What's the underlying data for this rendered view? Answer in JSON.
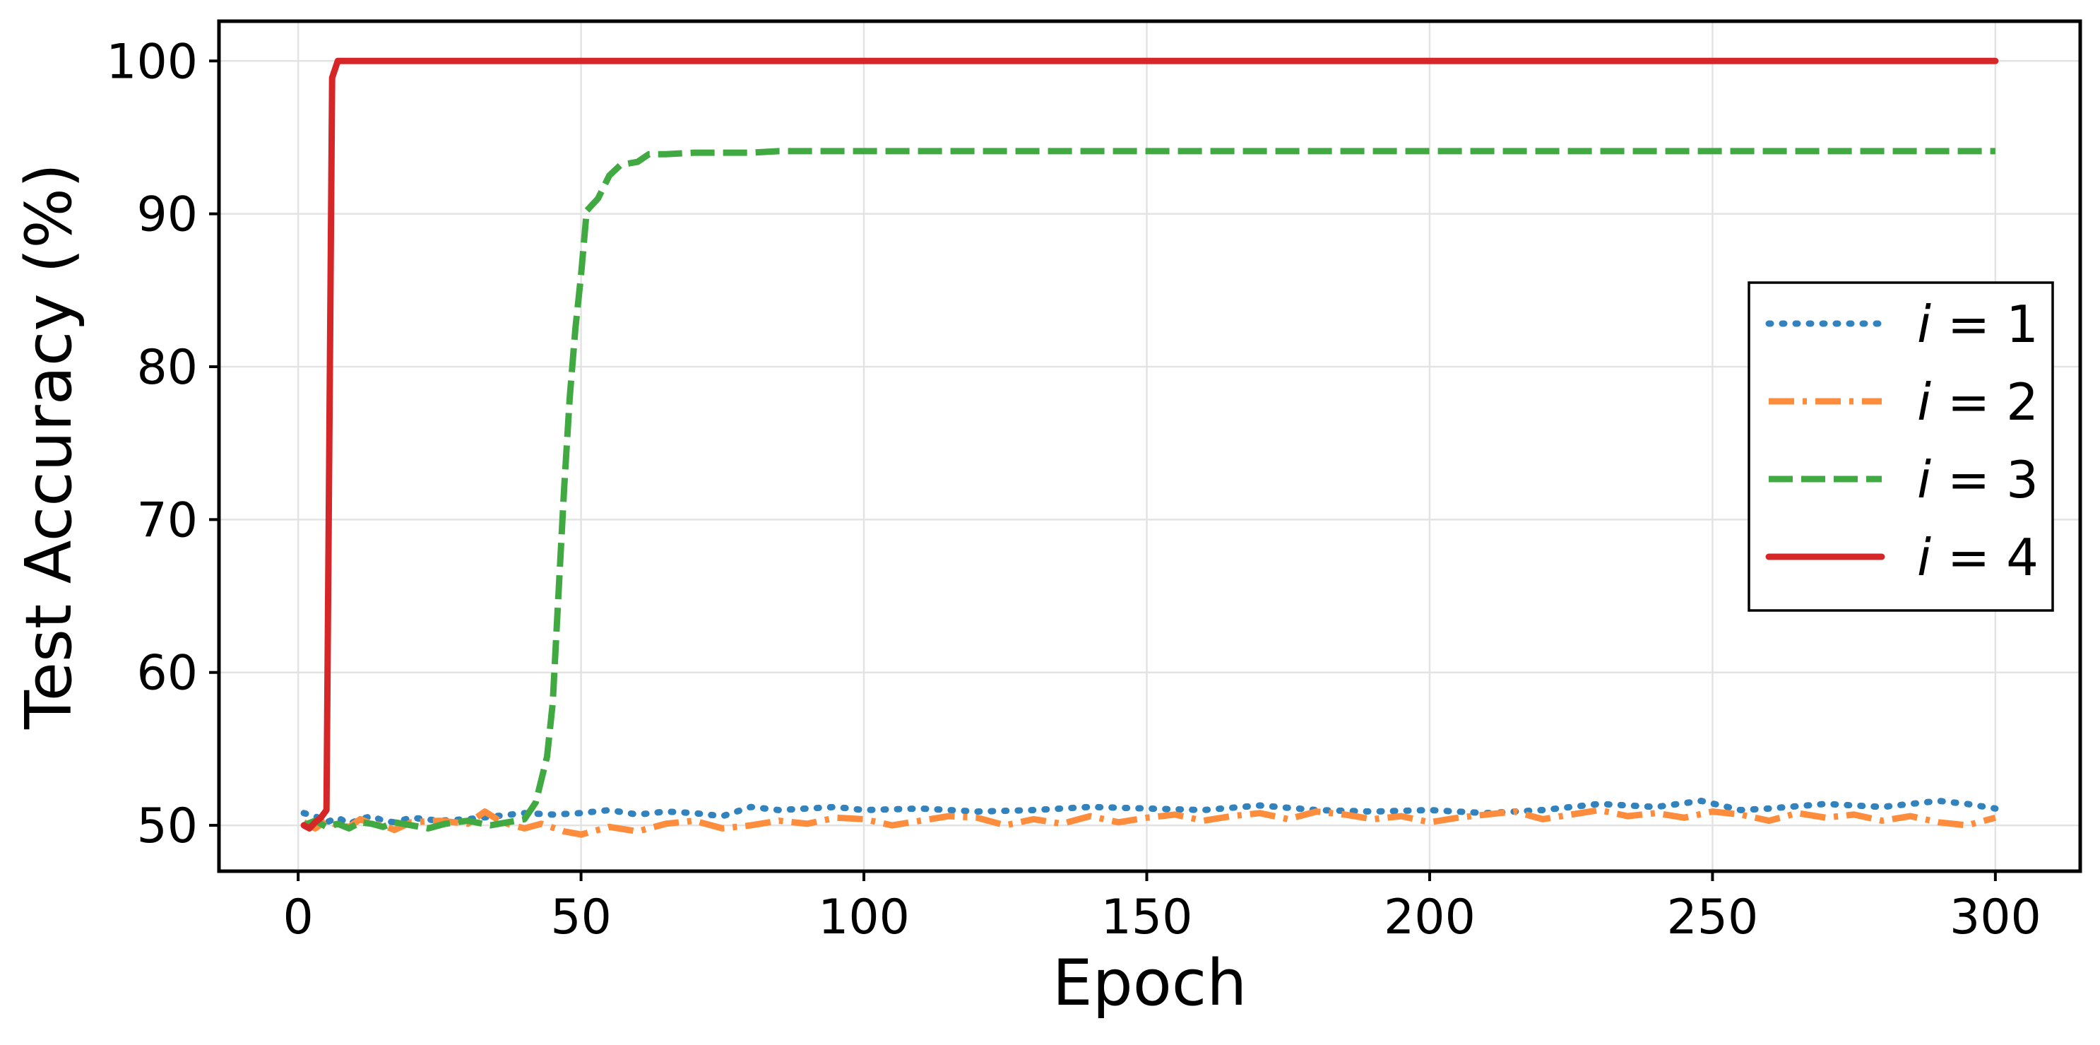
{
  "chart_data": {
    "type": "line",
    "title": "",
    "xlabel": "Epoch",
    "ylabel": "Test Accuracy (%)",
    "xlim": [
      -14,
      315
    ],
    "ylim": [
      47,
      102.6
    ],
    "xticks": [
      0,
      50,
      100,
      150,
      200,
      250,
      300
    ],
    "yticks": [
      50,
      60,
      70,
      80,
      90,
      100
    ],
    "xtick_labels": [
      "0",
      "50",
      "100",
      "150",
      "200",
      "250",
      "300"
    ],
    "ytick_labels": [
      "50",
      "60",
      "70",
      "80",
      "90",
      "100"
    ],
    "grid": true,
    "legend_position": "center-right",
    "series": [
      {
        "name": "i = 1",
        "legend_italic": "i",
        "legend_rest": " = 1",
        "color": "#3182bd",
        "style": "dotted",
        "x": [
          1,
          3,
          5,
          7,
          9,
          11,
          13,
          15,
          17,
          20,
          25,
          30,
          35,
          40,
          45,
          50,
          55,
          60,
          65,
          70,
          75,
          80,
          85,
          90,
          95,
          100,
          110,
          120,
          130,
          140,
          150,
          160,
          170,
          180,
          190,
          200,
          210,
          220,
          230,
          240,
          248,
          255,
          260,
          270,
          280,
          290,
          295,
          300
        ],
        "values": [
          50.8,
          50.6,
          50.2,
          50.5,
          50.1,
          50.4,
          50.6,
          50.3,
          50.2,
          50.5,
          50.3,
          50.4,
          50.6,
          50.8,
          50.7,
          50.8,
          51.0,
          50.7,
          50.9,
          50.8,
          50.6,
          51.2,
          51.0,
          51.1,
          51.2,
          51.0,
          51.1,
          50.9,
          51.0,
          51.2,
          51.1,
          51.0,
          51.3,
          51.0,
          50.9,
          51.0,
          50.8,
          51.0,
          51.4,
          51.2,
          51.6,
          51.0,
          51.1,
          51.4,
          51.2,
          51.6,
          51.4,
          51.1
        ]
      },
      {
        "name": "i = 2",
        "legend_italic": "i",
        "legend_rest": " = 2",
        "color": "#fd8d3c",
        "style": "dashdot",
        "x": [
          1,
          3,
          5,
          7,
          9,
          11,
          13,
          15,
          17,
          20,
          25,
          30,
          33,
          36,
          40,
          43,
          47,
          50,
          55,
          60,
          65,
          70,
          75,
          80,
          85,
          90,
          95,
          100,
          105,
          110,
          115,
          120,
          125,
          130,
          135,
          140,
          145,
          150,
          155,
          160,
          165,
          170,
          175,
          180,
          185,
          190,
          195,
          200,
          205,
          210,
          215,
          220,
          225,
          230,
          235,
          240,
          245,
          250,
          255,
          260,
          265,
          270,
          275,
          280,
          285,
          290,
          295,
          300
        ],
        "values": [
          50.2,
          49.8,
          50.3,
          50.0,
          49.9,
          50.4,
          50.1,
          50.0,
          49.7,
          50.2,
          50.3,
          50.1,
          50.9,
          50.2,
          49.8,
          50.1,
          49.6,
          49.4,
          49.9,
          49.6,
          50.1,
          50.3,
          49.8,
          50.0,
          50.3,
          50.1,
          50.5,
          50.4,
          50.0,
          50.3,
          50.6,
          50.5,
          50.0,
          50.4,
          50.1,
          50.6,
          50.2,
          50.5,
          50.7,
          50.3,
          50.6,
          50.8,
          50.4,
          50.9,
          50.7,
          50.4,
          50.6,
          50.2,
          50.5,
          50.7,
          50.9,
          50.4,
          50.7,
          51.0,
          50.6,
          50.8,
          50.5,
          50.9,
          50.7,
          50.3,
          50.8,
          50.5,
          50.7,
          50.3,
          50.6,
          50.2,
          50.0,
          50.5
        ]
      },
      {
        "name": "i = 3",
        "legend_italic": "i",
        "legend_rest": " = 3",
        "color": "#41a941",
        "style": "dashed",
        "x": [
          1,
          3,
          5,
          7,
          9,
          11,
          13,
          15,
          17,
          20,
          23,
          26,
          30,
          34,
          37,
          40,
          42,
          44,
          45,
          46,
          47,
          48,
          49,
          50,
          51,
          53,
          55,
          57,
          60,
          62,
          65,
          70,
          75,
          80,
          85,
          90,
          100,
          120,
          150,
          200,
          250,
          300
        ],
        "values": [
          50.0,
          50.3,
          49.9,
          50.1,
          49.8,
          50.2,
          50.1,
          49.9,
          50.2,
          50.0,
          49.8,
          50.1,
          50.3,
          50.0,
          50.2,
          50.4,
          51.5,
          54.5,
          58.0,
          65.0,
          72.0,
          78.0,
          82.5,
          86.0,
          90.2,
          91.0,
          92.5,
          93.2,
          93.4,
          93.9,
          93.9,
          94.0,
          94.0,
          94.0,
          94.1,
          94.1,
          94.1,
          94.1,
          94.1,
          94.1,
          94.1,
          94.1
        ]
      },
      {
        "name": "i = 4",
        "legend_italic": "i",
        "legend_rest": " = 4",
        "color": "#d62728",
        "style": "solid",
        "x": [
          1,
          2,
          3,
          4,
          5,
          6,
          7,
          10,
          50,
          100,
          150,
          200,
          250,
          300
        ],
        "values": [
          50.0,
          49.8,
          50.2,
          50.5,
          51.0,
          98.9,
          100.0,
          100.0,
          100.0,
          100.0,
          100.0,
          100.0,
          100.0,
          100.0
        ]
      }
    ]
  }
}
